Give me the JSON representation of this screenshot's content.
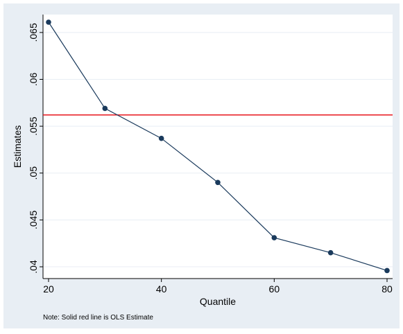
{
  "chart_data": {
    "type": "line",
    "title": "",
    "xlabel": "Quantile",
    "ylabel": "Estimates",
    "note": "Note: Solid red line is OLS Estimate",
    "x": [
      20,
      30,
      40,
      50,
      60,
      70,
      80
    ],
    "series": [
      {
        "values": [
          0.0661,
          0.0569,
          0.0537,
          0.049,
          0.0431,
          0.0415,
          0.0396
        ],
        "color": "#1a3a5c",
        "marker": "circle"
      }
    ],
    "reference_line": {
      "y": 0.0562,
      "color": "#e8141c",
      "style": "solid"
    },
    "xlim": [
      20,
      80
    ],
    "ylim": [
      0.04,
      0.0661
    ],
    "xticks": [
      20,
      40,
      60,
      80
    ],
    "xtick_labels": [
      "20",
      "40",
      "60",
      "80"
    ],
    "yticks": [
      0.04,
      0.045,
      0.05,
      0.055,
      0.06,
      0.065
    ],
    "ytick_labels": [
      ".04",
      ".045",
      ".05",
      ".055",
      ".06",
      ".065"
    ],
    "grid": true,
    "grid_axis": "y",
    "legend": "none",
    "colors": {
      "outer_background": "#e8eef4",
      "plot_background": "#ffffff",
      "grid": "#e8eef4",
      "axis": "#000000"
    }
  }
}
